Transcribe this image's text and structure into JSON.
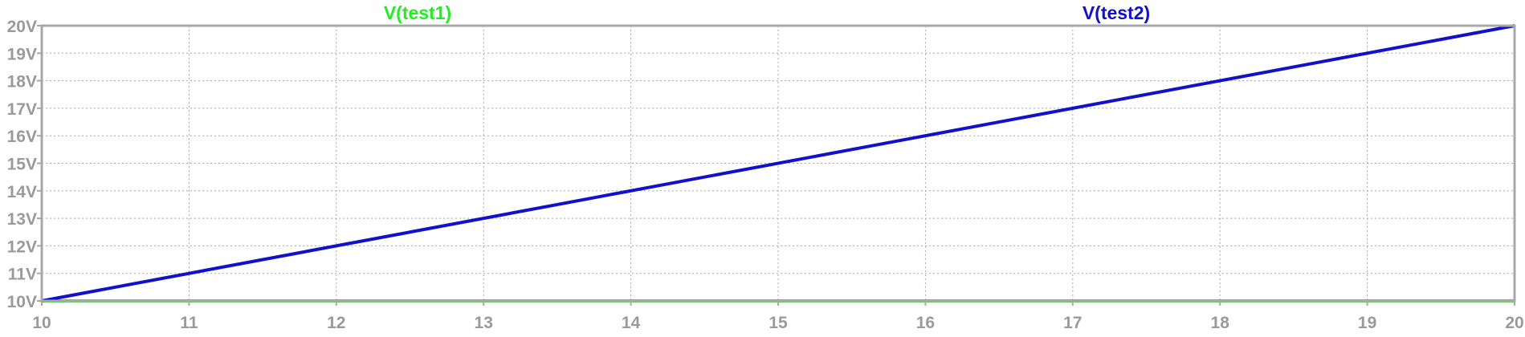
{
  "chart_data": {
    "type": "line",
    "title": "",
    "xlabel": "",
    "ylabel": "",
    "xlim": [
      10,
      20
    ],
    "ylim": [
      10,
      20
    ],
    "grid": true,
    "x_ticks": [
      "10",
      "11",
      "12",
      "13",
      "14",
      "15",
      "16",
      "17",
      "18",
      "19",
      "20"
    ],
    "y_ticks": [
      "10V",
      "11V",
      "12V",
      "13V",
      "14V",
      "15V",
      "16V",
      "17V",
      "18V",
      "19V",
      "20V"
    ],
    "series": [
      {
        "name": "V(test1)",
        "color": "#22ee22",
        "x": [
          10,
          20
        ],
        "y": [
          10,
          10
        ]
      },
      {
        "name": "V(test2)",
        "color": "#1111cc",
        "x": [
          10,
          20
        ],
        "y": [
          10,
          20
        ]
      }
    ]
  }
}
